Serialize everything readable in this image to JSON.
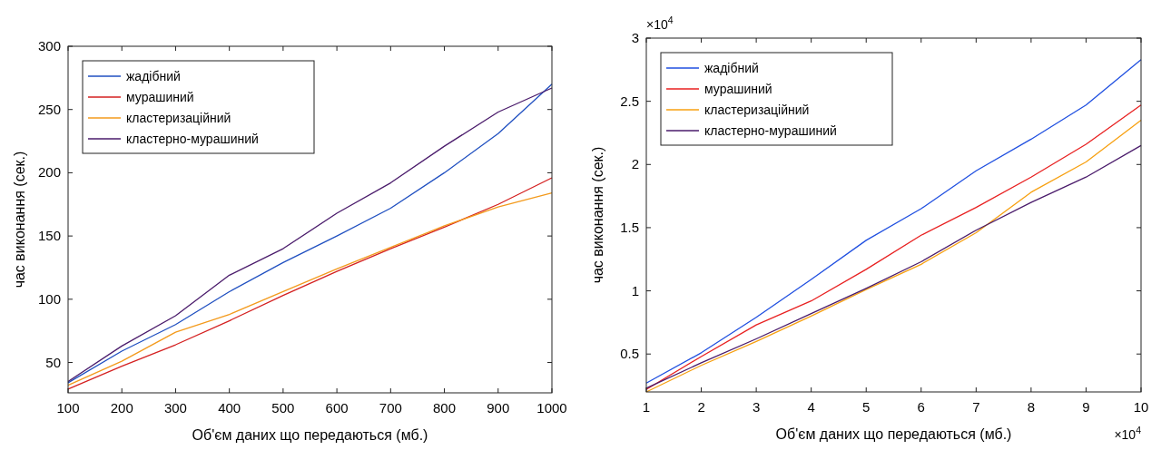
{
  "chart_data": [
    {
      "type": "line",
      "xlabel": "Об'єм даних що передаються (мб.)",
      "ylabel": "час виконання (сек.)",
      "x": [
        100,
        200,
        300,
        400,
        500,
        600,
        700,
        800,
        900,
        1000
      ],
      "xlim": [
        100,
        1000
      ],
      "xticks": [
        100,
        200,
        300,
        400,
        500,
        600,
        700,
        800,
        900,
        1000
      ],
      "ylim": [
        26,
        300
      ],
      "yticks": [
        50,
        100,
        150,
        200,
        250,
        300
      ],
      "legend": "top left",
      "grid": false,
      "series": [
        {
          "name": "жадібний",
          "color": "#1f4fc0",
          "values": [
            34,
            59,
            80,
            106,
            129,
            150,
            172,
            200,
            231,
            270
          ]
        },
        {
          "name": "мурашиний",
          "color": "#d42020",
          "values": [
            29,
            47,
            64,
            83,
            103,
            122,
            140,
            157,
            175,
            196
          ]
        },
        {
          "name": "кластеризаційний",
          "color": "#f39a1c",
          "values": [
            32,
            51,
            74,
            88,
            106,
            124,
            141,
            158,
            173,
            184
          ]
        },
        {
          "name": "кластерно-мурашиний",
          "color": "#4a1b6b",
          "values": [
            35,
            63,
            87,
            119,
            140,
            168,
            192,
            221,
            248,
            267
          ]
        }
      ]
    },
    {
      "type": "line",
      "xlabel": "Об'єм даних що передаються (мб.)",
      "ylabel": "час виконання (сек.)",
      "annotations": [
        "×10$^{4}$",
        "×10$^{4}$"
      ],
      "x": [
        1,
        2,
        3,
        4,
        5,
        6,
        7,
        8,
        9,
        10
      ],
      "xlim": [
        1,
        10
      ],
      "xticks": [
        1,
        2,
        3,
        4,
        5,
        6,
        7,
        8,
        9,
        10
      ],
      "ylim": [
        0.2,
        3
      ],
      "yticks": [
        0.5,
        1,
        1.5,
        2,
        2.5,
        3
      ],
      "legend": "top left",
      "grid": false,
      "series": [
        {
          "name": "жадібний",
          "color": "#1f4fe0",
          "values": [
            0.27,
            0.51,
            0.79,
            1.09,
            1.4,
            1.65,
            1.95,
            2.2,
            2.47,
            2.83
          ]
        },
        {
          "name": "мурашиний",
          "color": "#e82020",
          "values": [
            0.22,
            0.48,
            0.73,
            0.92,
            1.17,
            1.44,
            1.66,
            1.9,
            2.16,
            2.47
          ]
        },
        {
          "name": "кластеризаційний",
          "color": "#f7a010",
          "values": [
            0.2,
            0.41,
            0.6,
            0.8,
            1.01,
            1.21,
            1.46,
            1.78,
            2.02,
            2.35
          ]
        },
        {
          "name": "кластерно-мурашиний",
          "color": "#4a1b6b",
          "values": [
            0.23,
            0.43,
            0.62,
            0.82,
            1.02,
            1.23,
            1.48,
            1.7,
            1.9,
            2.15
          ]
        }
      ]
    }
  ]
}
